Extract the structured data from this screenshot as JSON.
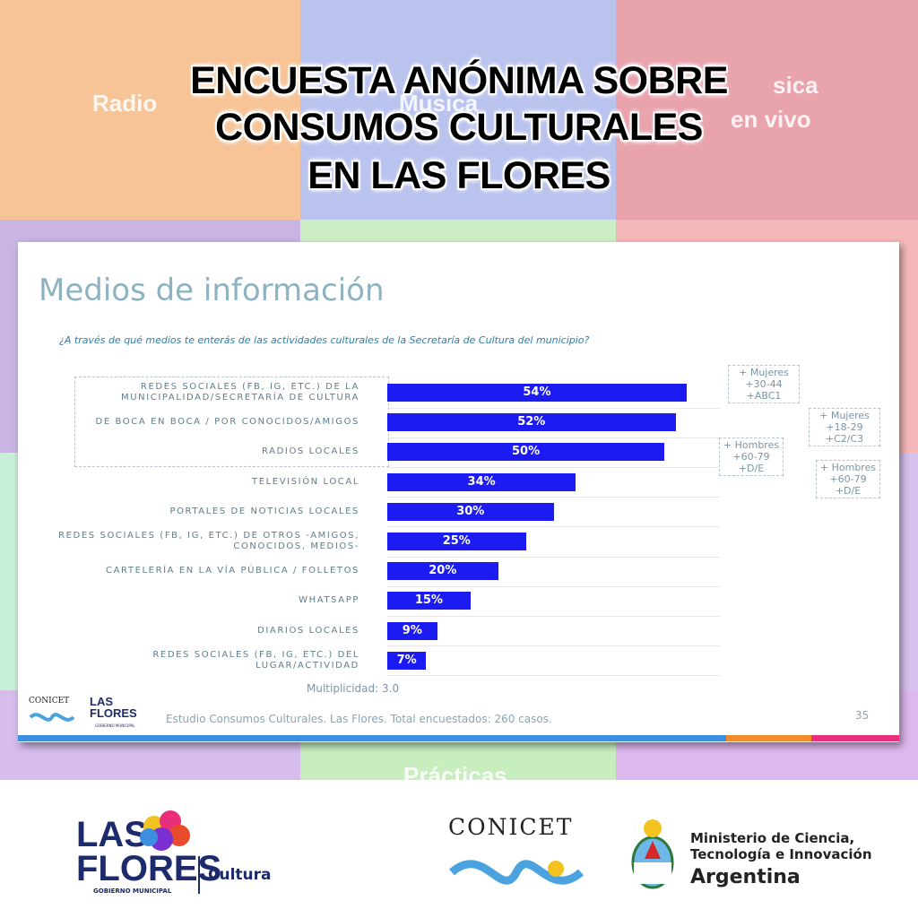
{
  "header": {
    "title_lines": [
      "ENCUESTA ANÓNIMA SOBRE",
      "CONSUMOS CULTURALES",
      "EN LAS FLORES"
    ],
    "background_words": [
      "Radio",
      "Musica",
      "sica",
      "en vivo",
      "Prácticas"
    ]
  },
  "chart_data": {
    "type": "bar",
    "orientation": "horizontal",
    "title": "Medios de información",
    "subtitle": "¿A través de qué medios te enterás de las actividades culturales de la Secretaría de Cultura del municipio?",
    "categories": [
      "REDES SOCIALES (FB, IG, ETC.) DE LA\nMUNICIPALIDAD/SECRETARÍA DE CULTURA",
      "DE BOCA EN BOCA / POR CONOCIDOS/AMIGOS",
      "RADIOS LOCALES",
      "TELEVISIÓN LOCAL",
      "PORTALES DE NOTICIAS LOCALES",
      "REDES SOCIALES (FB, IG, ETC.) DE OTROS -AMIGOS,\nCONOCIDOS, MEDIOS-",
      "CARTELERÍA EN LA VÍA PÚBLICA / FOLLETOS",
      "WHATSAPP",
      "DIARIOS LOCALES",
      "REDES SOCIALES (FB, IG, ETC.) DEL\nLUGAR/ACTIVIDAD"
    ],
    "values": [
      54,
      52,
      50,
      34,
      30,
      25,
      20,
      15,
      9,
      7
    ],
    "value_labels": [
      "54%",
      "52%",
      "50%",
      "34%",
      "30%",
      "25%",
      "20%",
      "15%",
      "9%",
      "7%"
    ],
    "color": "#1c1cf2",
    "xlim": [
      0,
      60
    ],
    "annotations": [
      [
        "+ Mujeres",
        "+30-44",
        "+ABC1"
      ],
      [
        "+ Mujeres",
        "+18-29",
        "+C2/C3"
      ],
      [
        "+ Hombres",
        "+60-79",
        "+D/E"
      ],
      [
        "+ Hombres",
        "+60-79",
        "+D/E"
      ]
    ],
    "note": "Multiplicidad: 3.0",
    "source": "Estudio Consumos Culturales. Las Flores. Total encuestados: 260 casos.",
    "page_number": "35"
  },
  "slide_logos": {
    "conicet": "CONICET",
    "las_flores": "LAS\nFLORES",
    "municipal": "GOBIERNO MUNICIPAL"
  },
  "footer": {
    "las": "LAS",
    "flores": "FLORES",
    "municipal": "GOBIERNO MUNICIPAL",
    "cultura": "Cultura",
    "conicet": "CONICET",
    "ministry_lines": [
      "Ministerio de Ciencia,",
      "Tecnología e Innovación"
    ],
    "country": "Argentina"
  }
}
